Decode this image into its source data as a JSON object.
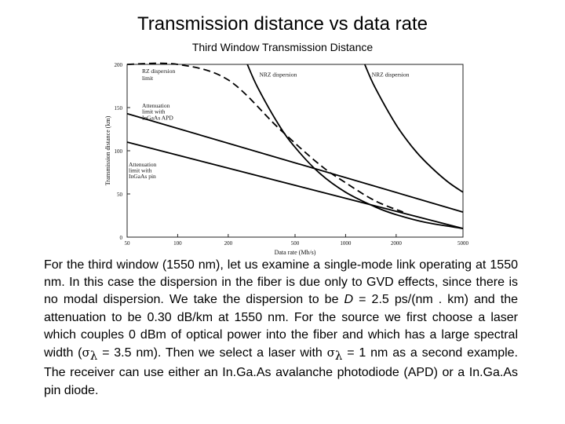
{
  "title": "Transmission distance vs data rate",
  "subtitle": "Third Window Transmission Distance",
  "chart_data": {
    "type": "line",
    "xscale": "log",
    "xlim": [
      50,
      5000
    ],
    "ylim": [
      0,
      200
    ],
    "xticks": [
      50,
      100,
      200,
      500,
      1000,
      2000,
      5000
    ],
    "yticks": [
      0,
      50,
      100,
      150,
      200
    ],
    "xlabel": "Data rate (Mb/s)",
    "ylabel": "Transmission distance (km)",
    "grid": false,
    "series": [
      {
        "name": "Attenuation limit with InGaAs APD",
        "style": "solid",
        "x": [
          50,
          5000
        ],
        "y": [
          143,
          29
        ]
      },
      {
        "name": "Attenuation limit with InGaAs pin",
        "style": "solid",
        "x": [
          50,
          5000
        ],
        "y": [
          110,
          10
        ]
      },
      {
        "name": "RZ dispersion limit",
        "style": "dashed",
        "x": [
          50,
          100,
          200,
          400,
          700,
          1000,
          1500,
          2200
        ],
        "y": [
          200,
          200,
          182,
          126,
          84,
          63,
          42,
          29
        ]
      },
      {
        "name": "NRZ dispersion",
        "style": "solid",
        "x": [
          260,
          300,
          400,
          500,
          700,
          1000,
          1500,
          2000,
          3000,
          5000
        ],
        "y": [
          200,
          173,
          130,
          104,
          74,
          52,
          35,
          26,
          17,
          10
        ]
      },
      {
        "name": "NRZ dispersion",
        "style": "solid",
        "x": [
          1300,
          1500,
          2000,
          2500,
          3000,
          4000,
          5000
        ],
        "y": [
          200,
          173,
          130,
          104,
          87,
          65,
          52
        ]
      }
    ],
    "annotations": [
      {
        "text": "RZ dispersion",
        "x": 60,
        "y": 190
      },
      {
        "text": "limit",
        "x": 60,
        "y": 182
      },
      {
        "text": "Attenuation",
        "x": 60,
        "y": 150
      },
      {
        "text": "limit with",
        "x": 60,
        "y": 143
      },
      {
        "text": "InGaAs APD",
        "x": 60,
        "y": 136
      },
      {
        "text": "Attenuation",
        "x": 50,
        "y": 82
      },
      {
        "text": "limit with",
        "x": 50,
        "y": 75
      },
      {
        "text": "InGaAs pin",
        "x": 50,
        "y": 68
      },
      {
        "text": "NRZ dispersion",
        "x": 300,
        "y": 186
      },
      {
        "text": "NRZ dispersion",
        "x": 1400,
        "y": 186
      }
    ]
  },
  "paragraph": {
    "before_sigma1": "For the third window (1550 nm), let us examine a single-mode link operating at 1550 nm. In this case the dispersion in the fiber is due only to GVD effects, since there is no modal dispersion. We take the dispersion to be ",
    "d_symbol": "D",
    "mid1": " = 2.5 ps/(nm . km) and the attenuation to be 0.30 dB/km at 1550 nm. For the source we first choose a laser which couples 0 dBm of optical power into the fiber and which has a large spectral width (",
    "sigma_symbol": "σ",
    "lambda_sub": "λ",
    "mid2": " = 3.5 nm). Then we select a laser with ",
    "after_sigma2": " = 1 nm as a second example.  The receiver can use either an In.Ga.As avalanche photodiode (APD) or a In.Ga.As pin diode."
  }
}
